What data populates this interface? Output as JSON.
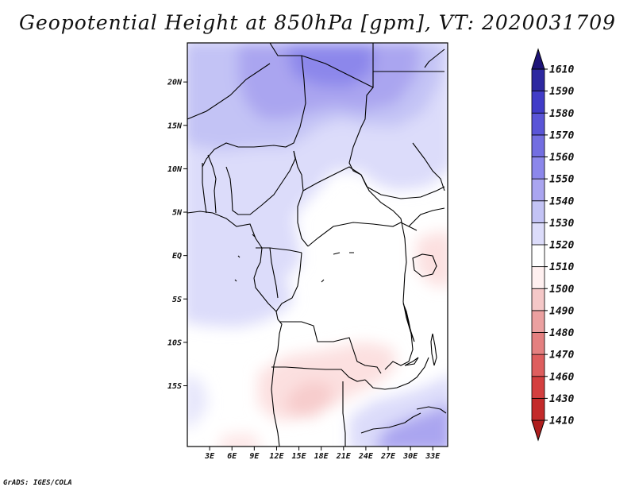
{
  "title": "Geopotential Height at 850hPa [gpm], VT: 2020031709",
  "credit": "GrADS: IGES/COLA",
  "map": {
    "lon_range": [
      0,
      35
    ],
    "lat_range": [
      -22,
      24.5
    ],
    "lon_ticks": [
      {
        "value": 3,
        "label": "3E"
      },
      {
        "value": 6,
        "label": "6E"
      },
      {
        "value": 9,
        "label": "9E"
      },
      {
        "value": 12,
        "label": "12E"
      },
      {
        "value": 15,
        "label": "15E"
      },
      {
        "value": 18,
        "label": "18E"
      },
      {
        "value": 21,
        "label": "21E"
      },
      {
        "value": 24,
        "label": "24E"
      },
      {
        "value": 27,
        "label": "27E"
      },
      {
        "value": 30,
        "label": "30E"
      },
      {
        "value": 33,
        "label": "33E"
      }
    ],
    "lat_ticks": [
      {
        "value": 20,
        "label": "20N"
      },
      {
        "value": 15,
        "label": "15N"
      },
      {
        "value": 10,
        "label": "10N"
      },
      {
        "value": 5,
        "label": "5N"
      },
      {
        "value": 0,
        "label": "EQ"
      },
      {
        "value": -5,
        "label": "5S"
      },
      {
        "value": -10,
        "label": "10S"
      },
      {
        "value": -15,
        "label": "15S"
      }
    ]
  },
  "colorbar": {
    "levels": [
      "1410",
      "1430",
      "1460",
      "1470",
      "1480",
      "1490",
      "1500",
      "1510",
      "1520",
      "1530",
      "1540",
      "1550",
      "1560",
      "1570",
      "1580",
      "1590",
      "1610"
    ],
    "colors": [
      "#ae1e1e",
      "#c32a2a",
      "#d43f3f",
      "#de5e5e",
      "#e48080",
      "#eba0a0",
      "#f5c8c8",
      "#fff0f0",
      "#ffffff",
      "#dcdcfa",
      "#c3c3f5",
      "#aaa5f0",
      "#8c87eb",
      "#736ee1",
      "#5a55d7",
      "#413cc8",
      "#2d28a0",
      "#1e1478"
    ]
  }
}
